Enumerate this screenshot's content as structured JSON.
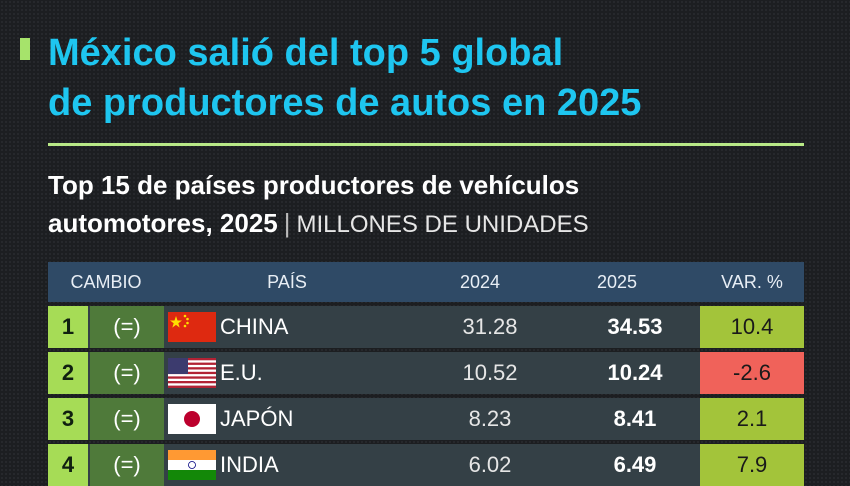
{
  "title": "México salió del top 5 global\nde productores de autos en 2025",
  "subtitle_line1": "Top 15 de países productores de vehículos",
  "subtitle_line2": "automotores, 2025",
  "subtitle_unit": "MILLONES DE UNIDADES",
  "subtitle_sep": "|",
  "colors": {
    "title": "#1ec6f0",
    "accent": "#a6e36b",
    "header_bg": "#2f4a66",
    "positive_var": "#a3c43a",
    "negative_var": "#f0625a"
  },
  "table": {
    "headers": [
      "CAMBIO",
      "PAÍS",
      "2024",
      "2025",
      "VAR. %"
    ]
  },
  "chart_data": {
    "type": "table",
    "columns": [
      "rank",
      "cambio",
      "país",
      "2024",
      "2025",
      "var_pct"
    ],
    "rows": [
      {
        "rank": "1",
        "change": "(=)",
        "flag": "china-flag-icon",
        "country": "CHINA",
        "y2024": "31.28",
        "y2025": "34.53",
        "var": "10.4",
        "var_num": 10.4
      },
      {
        "rank": "2",
        "change": "(=)",
        "flag": "us-flag-icon",
        "country": "E.U.",
        "y2024": "10.52",
        "y2025": "10.24",
        "var": "-2.6",
        "var_num": -2.6
      },
      {
        "rank": "3",
        "change": "(=)",
        "flag": "japan-flag-icon",
        "country": "JAPÓN",
        "y2024": "8.23",
        "y2025": "8.41",
        "var": "2.1",
        "var_num": 2.1
      },
      {
        "rank": "4",
        "change": "(=)",
        "flag": "india-flag-icon",
        "country": "INDIA",
        "y2024": "6.02",
        "y2025": "6.49",
        "var": "7.9",
        "var_num": 7.9
      }
    ]
  }
}
